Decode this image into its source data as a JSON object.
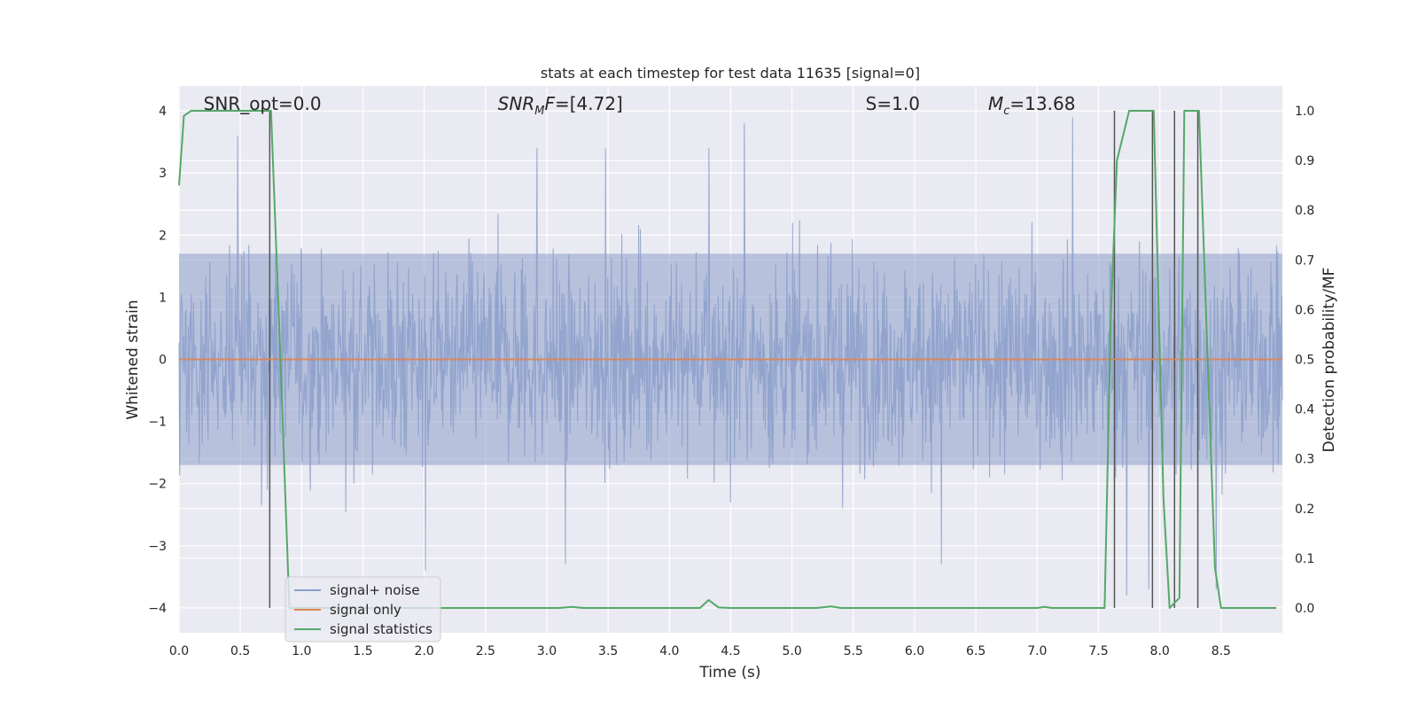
{
  "chart_data": {
    "type": "line",
    "title": "stats at each timestep for test data 11635 [signal=0]",
    "xlabel": "Time (s)",
    "ylabel": "Whitened strain",
    "y2label": "Detection probability/MF",
    "xlim": [
      0,
      9
    ],
    "ylim": [
      -4.4,
      4.4
    ],
    "y2lim": [
      -0.05,
      1.05
    ],
    "x_ticks": [
      0.0,
      0.5,
      1.0,
      1.5,
      2.0,
      2.5,
      3.0,
      3.5,
      4.0,
      4.5,
      5.0,
      5.5,
      6.0,
      6.5,
      7.0,
      7.5,
      8.0,
      8.5
    ],
    "x_tick_labels": [
      "0.0",
      "0.5",
      "1.0",
      "1.5",
      "2.0",
      "2.5",
      "3.0",
      "3.5",
      "4.0",
      "4.5",
      "5.0",
      "5.5",
      "6.0",
      "6.5",
      "7.0",
      "7.5",
      "8.0",
      "8.5"
    ],
    "y_ticks": [
      4,
      3,
      2,
      1,
      0,
      -1,
      -2,
      -3,
      -4
    ],
    "y_tick_labels": [
      "4",
      "3",
      "2",
      "1",
      "0",
      "−1",
      "−2",
      "−3",
      "−4"
    ],
    "y2_ticks": [
      1.0,
      0.9,
      0.8,
      0.7,
      0.6,
      0.5,
      0.4,
      0.3,
      0.2,
      0.1,
      0.0
    ],
    "y2_tick_labels": [
      "1.0",
      "0.9",
      "0.8",
      "0.7",
      "0.6",
      "0.5",
      "0.4",
      "0.3",
      "0.2",
      "0.1",
      "0.0"
    ],
    "grid": true,
    "legend_position": "lower-left",
    "annotations": [
      {
        "id": "snr-opt",
        "text": "SNR_opt=0.0",
        "x": 0.2
      },
      {
        "id": "snr-mf",
        "text": "SNR_MF=[4.72]",
        "x": 2.6
      },
      {
        "id": "s-stat",
        "text": "S=1.0",
        "x": 5.6
      },
      {
        "id": "mc",
        "text": "M_c=13.68",
        "x": 6.6
      }
    ],
    "series": [
      {
        "name": "signal+ noise",
        "color": "#8c9fca",
        "kind": "noise",
        "envelope": {
          "typical_abs": 1.7,
          "peak_max": 3.8,
          "peak_min": -3.8
        },
        "peaks": [
          {
            "x": 0.48,
            "y": 3.6
          },
          {
            "x": 7.29,
            "y": 3.9
          },
          {
            "x": 4.61,
            "y": 3.8
          },
          {
            "x": 3.48,
            "y": 3.4
          },
          {
            "x": 2.92,
            "y": 3.4
          },
          {
            "x": 4.32,
            "y": 3.4
          },
          {
            "x": 7.73,
            "y": -3.8
          },
          {
            "x": 7.91,
            "y": -3.7
          },
          {
            "x": 8.46,
            "y": -3.7
          },
          {
            "x": 2.01,
            "y": -3.4
          },
          {
            "x": 3.15,
            "y": -3.3
          },
          {
            "x": 6.22,
            "y": -3.3
          }
        ]
      },
      {
        "name": "signal only",
        "color": "#dd8452",
        "kind": "line",
        "x": [
          0,
          9
        ],
        "y": [
          0,
          0
        ]
      },
      {
        "name": "signal statistics",
        "color": "#55a868",
        "kind": "line",
        "axis": "right",
        "x": [
          0.0,
          0.04,
          0.1,
          0.2,
          0.3,
          0.5,
          0.72,
          0.75,
          0.82,
          0.9,
          3.1,
          3.2,
          3.3,
          4.25,
          4.32,
          4.4,
          4.5,
          5.2,
          5.32,
          5.4,
          7.0,
          7.06,
          7.12,
          7.55,
          7.6,
          7.65,
          7.75,
          7.95,
          8.03,
          8.08,
          8.16,
          8.2,
          8.25,
          8.32,
          8.45,
          8.5,
          8.95
        ],
        "y": [
          0.85,
          0.99,
          1.0,
          1.0,
          1.0,
          1.0,
          1.0,
          1.0,
          0.55,
          0.0,
          0.0,
          0.002,
          0.0,
          0.0,
          0.016,
          0.001,
          0.0,
          0.0,
          0.003,
          0.0,
          0.0,
          0.002,
          0.0,
          0.0,
          0.58,
          0.9,
          1.0,
          1.0,
          0.22,
          0.0,
          0.02,
          1.0,
          1.0,
          1.0,
          0.08,
          0.0,
          0.0
        ]
      }
    ],
    "vertical_lines": [
      0.74,
      7.63,
      7.94,
      8.12,
      8.31
    ]
  }
}
